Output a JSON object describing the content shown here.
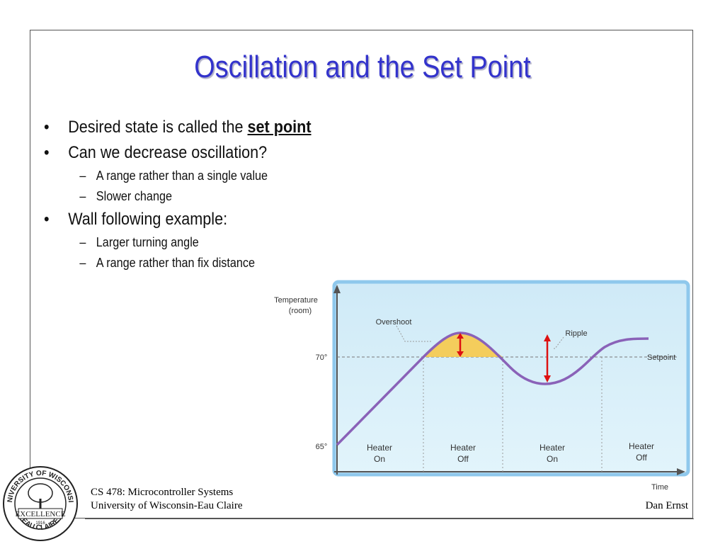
{
  "slide": {
    "title": "Oscillation and the Set Point",
    "bullet_glyph": "•",
    "dash_glyph": "–",
    "bullets": [
      {
        "text": "Desired state is called the ",
        "emphasis": "set point"
      },
      {
        "text": "Can we decrease oscillation?"
      },
      {
        "text": "A range rather than a single value"
      },
      {
        "text": "Slower change"
      },
      {
        "text": "Wall following example:"
      },
      {
        "text": "Larger turning angle"
      },
      {
        "text": "A range rather than fix distance"
      }
    ]
  },
  "chart_data": {
    "type": "line",
    "ylabel_line1": "Temperature",
    "ylabel_line2": "(room)",
    "xlabel": "Time",
    "y_ticks": [
      "70°",
      "65°"
    ],
    "y_tick_values": [
      70,
      65
    ],
    "setpoint_label": "Setpoint",
    "setpoint_value": 70,
    "annotations": {
      "overshoot": "Overshoot",
      "ripple": "Ripple"
    },
    "phases": [
      {
        "line1": "Heater",
        "line2": "On"
      },
      {
        "line1": "Heater",
        "line2": "Off"
      },
      {
        "line1": "Heater",
        "line2": "On"
      },
      {
        "line1": "Heater",
        "line2": "Off"
      }
    ],
    "colors": {
      "curve": "#8a62b8",
      "panel": "#d4eef8",
      "border": "#8fc8ec",
      "overshoot_fill": "#f7c94a",
      "arrow": "#dd1111"
    }
  },
  "footer": {
    "course": "CS 478: Microcontroller Systems",
    "university": "University of Wisconsin-Eau Claire",
    "author": "Dan Ernst"
  },
  "seal": {
    "top_text": "UNIVERSITY OF WISCONSIN",
    "motto": "EXCELLENCE",
    "bottom_text": "EAU CLAIRE",
    "year": "1916"
  }
}
